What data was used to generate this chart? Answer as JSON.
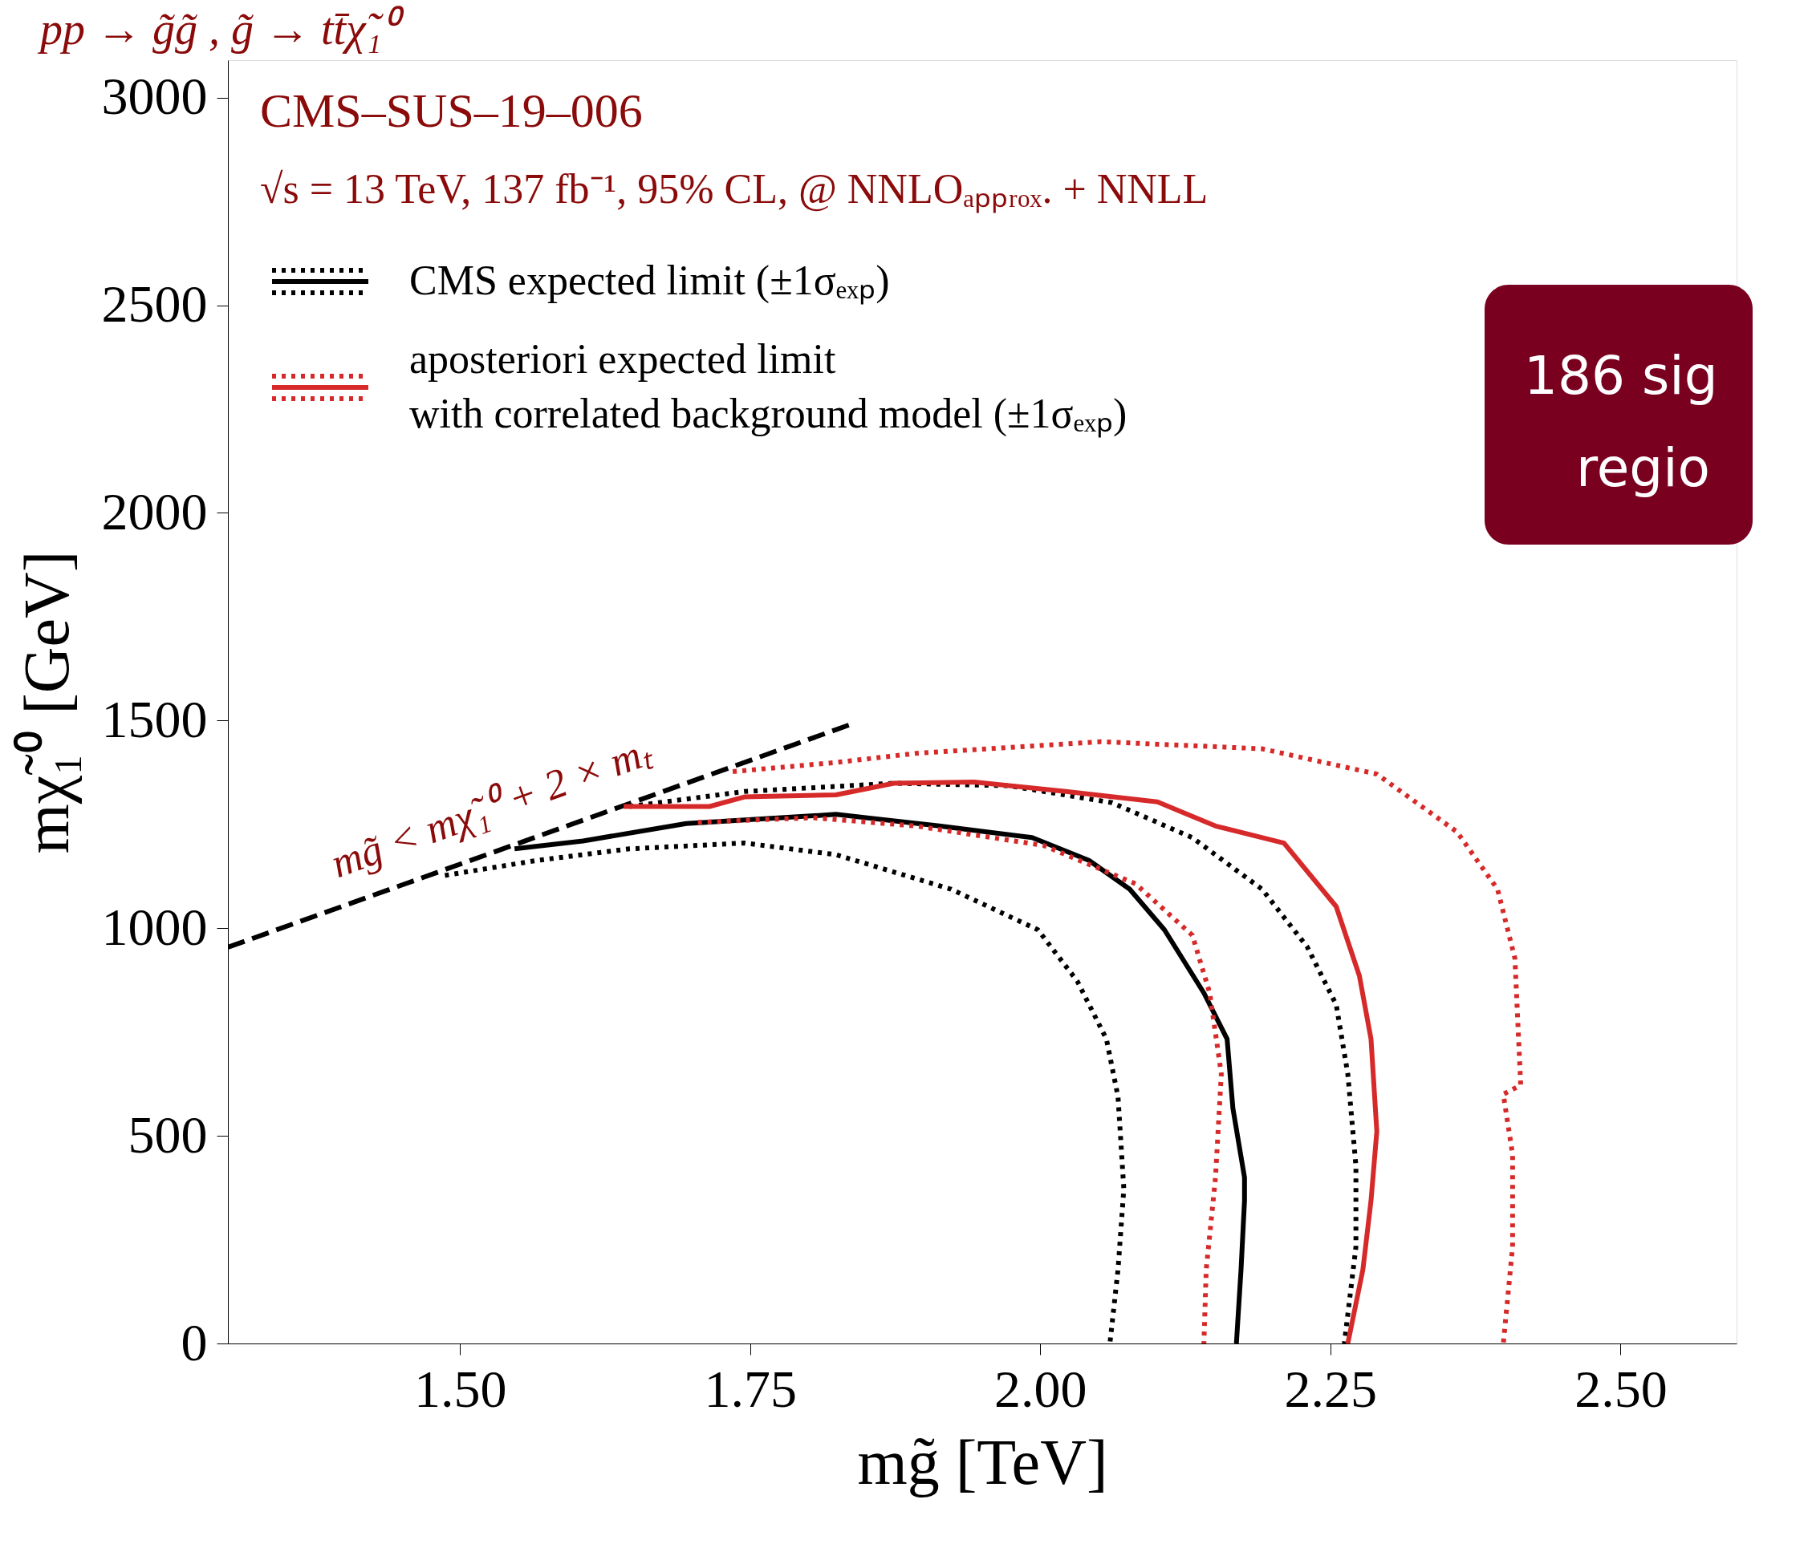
{
  "chart_data": {
    "type": "line",
    "title": "pp → g̃g̃ , g̃ → tt̄χ̃₁⁰",
    "xlabel": "mg̃ [TeV]",
    "ylabel": "mχ̃₁⁰ [GeV]",
    "xlim": [
      1.3,
      2.6
    ],
    "ylim": [
      0,
      3090
    ],
    "xticks": [
      {
        "value": 1.5,
        "label": "1.50"
      },
      {
        "value": 1.75,
        "label": "1.75"
      },
      {
        "value": 2.0,
        "label": "2.00"
      },
      {
        "value": 2.25,
        "label": "2.25"
      },
      {
        "value": 2.5,
        "label": "2.50"
      }
    ],
    "yticks": [
      0,
      500,
      1000,
      1500,
      2000,
      2500,
      3000
    ],
    "grid": false,
    "legend": "top left",
    "marker": "none",
    "annotations": [
      "CMS–SUS–19–006",
      "√s = 13 TeV, 137 fb⁻¹, 95% CL, @ NNLOₐₚₚᵣₒₓ. + NNLL",
      "mg̃ < mχ̃₁⁰ + 2 × mₜ",
      "186 sig",
      "regio"
    ],
    "series": [
      {
        "color": "#000000",
        "line_style": "dashed",
        "x": [
          1.3,
          1.835
        ],
        "values": [
          954,
          1489
        ]
      },
      {
        "color": "#000000",
        "line_style": "dotted",
        "x": [
          1.646,
          1.745,
          1.874,
          1.973,
          2.062,
          2.131,
          2.191,
          2.23,
          2.255,
          2.265,
          2.272,
          2.272,
          2.262
        ],
        "values": [
          1293,
          1329,
          1349,
          1343,
          1302,
          1218,
          1094,
          955,
          816,
          649,
          427,
          233,
          0
        ]
      },
      {
        "name": "CMS expected limit (±1σₑₓₚ)",
        "color": "#000000",
        "line_style": "solid",
        "x": [
          1.547,
          1.606,
          1.695,
          1.824,
          1.913,
          1.993,
          2.042,
          2.077,
          2.107,
          2.141,
          2.161,
          2.166,
          2.176,
          2.176,
          2.173,
          2.169
        ],
        "values": [
          1191,
          1210,
          1252,
          1274,
          1246,
          1218,
          1163,
          1094,
          996,
          844,
          733,
          566,
          400,
          344,
          178,
          0
        ]
      },
      {
        "color": "#000000",
        "line_style": "dotted",
        "x": [
          1.487,
          1.566,
          1.646,
          1.745,
          1.824,
          1.923,
          1.998,
          2.032,
          2.057,
          2.067,
          2.072,
          2.067,
          2.06
        ],
        "values": [
          1127,
          1163,
          1191,
          1205,
          1177,
          1094,
          996,
          872,
          733,
          594,
          372,
          178,
          0
        ]
      },
      {
        "color": "#d62a2a",
        "line_style": "dotted",
        "x": [
          1.735,
          1.824,
          1.893,
          2.052,
          2.191,
          2.29,
          2.359,
          2.394,
          2.409,
          2.414,
          2.399,
          2.407,
          2.407,
          2.399
        ],
        "values": [
          1377,
          1399,
          1421,
          1449,
          1432,
          1371,
          1232,
          1094,
          927,
          622,
          600,
          455,
          233,
          0
        ]
      },
      {
        "name": "aposteriori expected limit with correlated background model (±1σₑₓₚ)",
        "color": "#d62a2a",
        "line_style": "solid",
        "x": [
          1.641,
          1.715,
          1.745,
          1.824,
          1.874,
          1.943,
          2.022,
          2.101,
          2.151,
          2.21,
          2.255,
          2.275,
          2.285,
          2.29,
          2.285,
          2.278,
          2.265
        ],
        "values": [
          1293,
          1293,
          1316,
          1321,
          1349,
          1352,
          1329,
          1304,
          1246,
          1205,
          1052,
          885,
          733,
          511,
          344,
          178,
          0
        ]
      },
      {
        "color": "#d62a2a",
        "line_style": "dotted",
        "x": [
          1.705,
          1.804,
          1.893,
          2.003,
          2.082,
          2.131,
          2.146,
          2.156,
          2.151,
          2.143,
          2.141
        ],
        "values": [
          1255,
          1266,
          1246,
          1199,
          1107,
          983,
          844,
          649,
          400,
          178,
          0
        ]
      }
    ]
  }
}
